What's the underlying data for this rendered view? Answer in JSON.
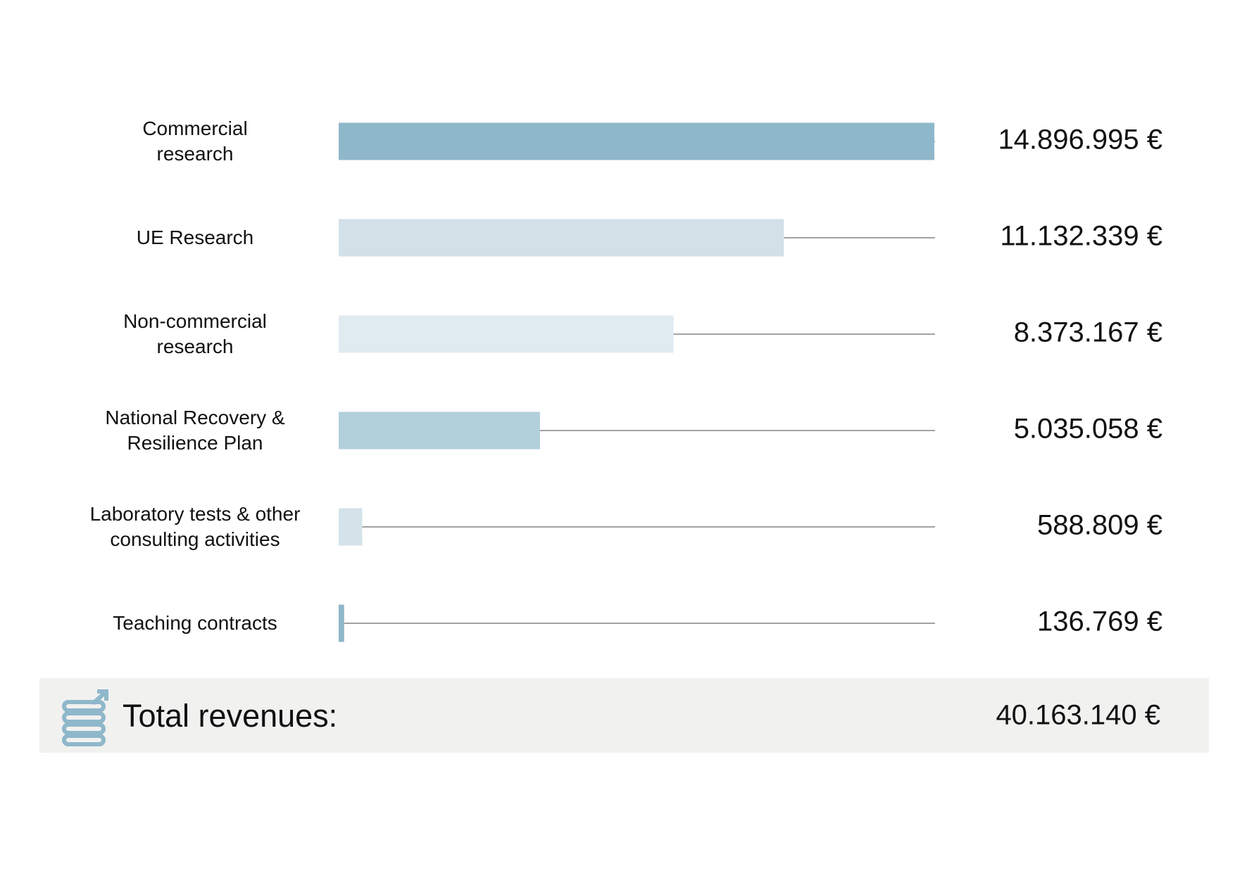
{
  "chart_data": {
    "type": "bar",
    "orientation": "horizontal",
    "categories": [
      "Commercial research",
      "UE Research",
      "Non-commercial research",
      "National Recovery & Resilience Plan",
      "Laboratory tests & other consulting activities",
      "Teaching contracts"
    ],
    "values": [
      14896995,
      11132339,
      8373167,
      5035058,
      588809,
      136769
    ],
    "value_labels": [
      "14.896.995 €",
      "11.132.339 €",
      "8.373.167 €",
      "5.035.058 €",
      "588.809 €",
      "136.769 €"
    ],
    "colors": [
      "#8fb7ca",
      "#d2e0e8",
      "#e0eaf1",
      "#b2cfdc",
      "#d4e2ea",
      "#8fb7ca"
    ],
    "xlim": [
      0,
      14896995
    ],
    "total": {
      "label": "Total revenues:",
      "value": 40163140,
      "value_label": "40.163.140 €"
    }
  }
}
